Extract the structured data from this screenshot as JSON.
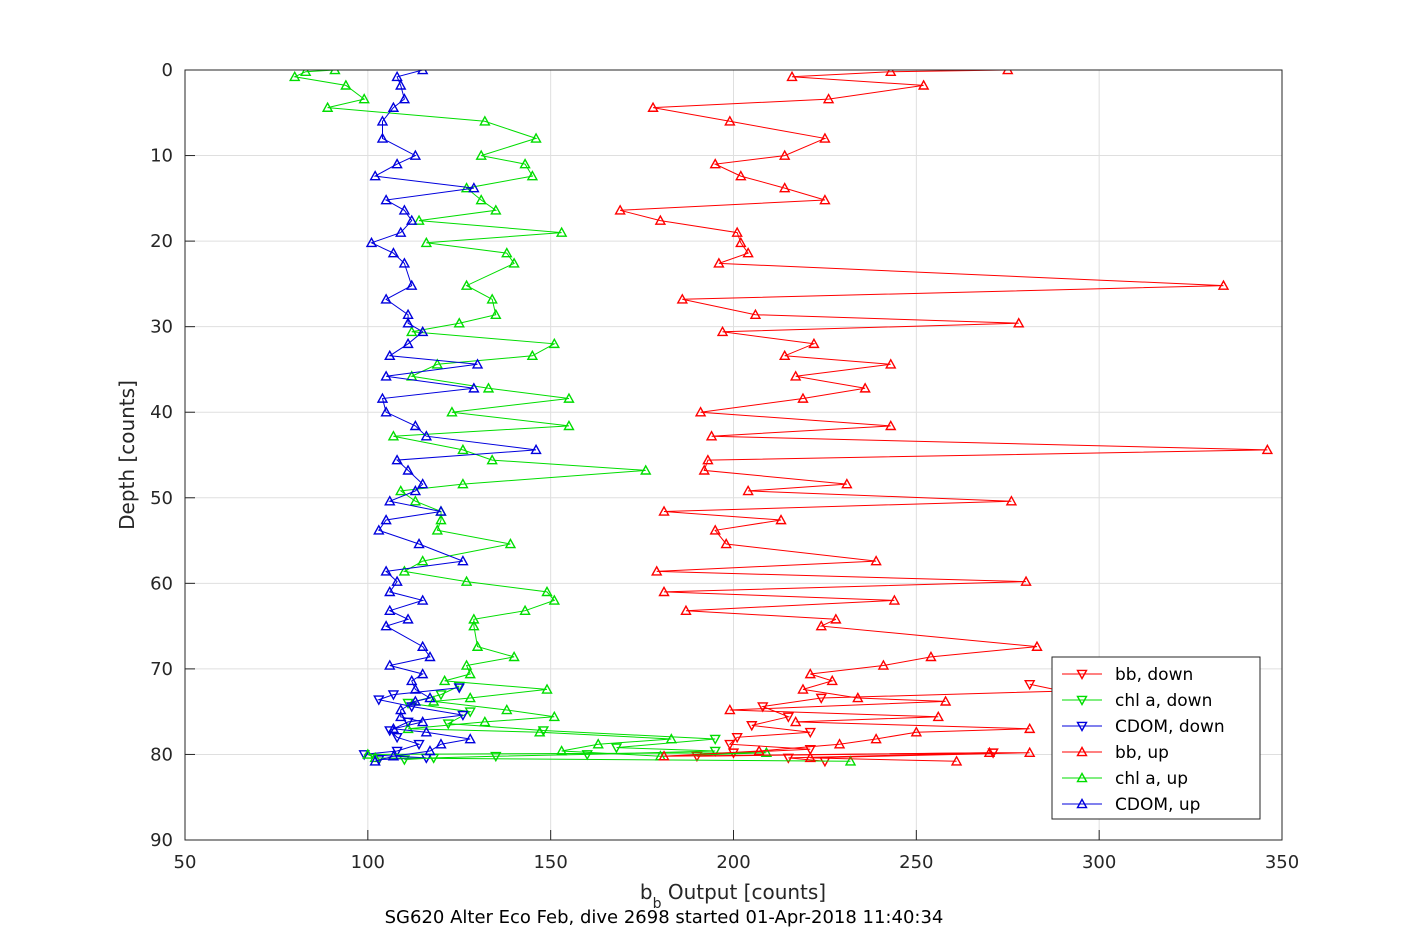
{
  "chart_data": {
    "type": "line",
    "title": "SG620 Alter Eco Feb, dive 2698 started 01-Apr-2018 11:40:34",
    "xlabel_main": "b",
    "xlabel_sub": "b",
    "xlabel_rest": " Output [counts]",
    "ylabel": "Depth [counts]",
    "xlim": [
      50,
      350
    ],
    "ylim": [
      0,
      90
    ],
    "y_reversed": true,
    "grid": true,
    "legend_position": "bottom-right",
    "xticks": [
      "50",
      "100",
      "150",
      "200",
      "250",
      "300",
      "350"
    ],
    "yticks": [
      "0",
      "10",
      "20",
      "30",
      "40",
      "50",
      "60",
      "70",
      "80",
      "90"
    ],
    "series": [
      {
        "name": "bb, down",
        "color": "#ff0000",
        "marker": "down",
        "points": [
          [
            281,
            71.8
          ],
          [
            290,
            72.6
          ],
          [
            224,
            73.4
          ],
          [
            208,
            74.4
          ],
          [
            215,
            75.6
          ],
          [
            205,
            76.6
          ],
          [
            221,
            77.4
          ],
          [
            201,
            78.0
          ],
          [
            199,
            78.8
          ],
          [
            221,
            79.4
          ],
          [
            200,
            79.8
          ],
          [
            190,
            80.2
          ],
          [
            271,
            79.8
          ],
          [
            215,
            80.4
          ],
          [
            225,
            80.8
          ]
        ]
      },
      {
        "name": "chl a, down",
        "color": "#00dd00",
        "marker": "down",
        "points": [
          [
            125,
            72.0
          ],
          [
            120,
            73.0
          ],
          [
            111,
            74.0
          ],
          [
            128,
            75.0
          ],
          [
            122,
            76.4
          ],
          [
            148,
            77.2
          ],
          [
            195,
            78.2
          ],
          [
            168,
            79.2
          ],
          [
            195,
            79.6
          ],
          [
            160,
            80.0
          ],
          [
            135,
            80.2
          ],
          [
            118,
            80.4
          ],
          [
            110,
            80.6
          ]
        ]
      },
      {
        "name": "CDOM, down",
        "color": "#0000dd",
        "marker": "down",
        "points": [
          [
            125,
            72.2
          ],
          [
            107,
            73.0
          ],
          [
            103,
            73.6
          ],
          [
            112,
            74.4
          ],
          [
            126,
            75.4
          ],
          [
            111,
            76.2
          ],
          [
            106,
            77.2
          ],
          [
            108,
            78.0
          ],
          [
            114,
            78.8
          ],
          [
            108,
            79.6
          ],
          [
            99,
            80.0
          ],
          [
            116,
            80.4
          ],
          [
            103,
            80.6
          ]
        ]
      },
      {
        "name": "bb, up",
        "color": "#ff0000",
        "marker": "up",
        "points": [
          [
            275,
            0
          ],
          [
            243,
            0.2
          ],
          [
            216,
            0.8
          ],
          [
            252,
            1.8
          ],
          [
            226,
            3.4
          ],
          [
            178,
            4.4
          ],
          [
            199,
            6
          ],
          [
            225,
            8
          ],
          [
            214,
            10
          ],
          [
            195,
            11
          ],
          [
            202,
            12.4
          ],
          [
            214,
            13.8
          ],
          [
            225,
            15.2
          ],
          [
            169,
            16.4
          ],
          [
            180,
            17.6
          ],
          [
            201,
            19
          ],
          [
            202,
            20.2
          ],
          [
            204,
            21.4
          ],
          [
            196,
            22.6
          ],
          [
            334,
            25.2
          ],
          [
            186,
            26.8
          ],
          [
            206,
            28.6
          ],
          [
            278,
            29.6
          ],
          [
            197,
            30.6
          ],
          [
            222,
            32
          ],
          [
            214,
            33.4
          ],
          [
            243,
            34.4
          ],
          [
            217,
            35.8
          ],
          [
            236,
            37.2
          ],
          [
            219,
            38.4
          ],
          [
            191,
            40
          ],
          [
            243,
            41.6
          ],
          [
            194,
            42.8
          ],
          [
            346,
            44.4
          ],
          [
            193,
            45.6
          ],
          [
            192,
            46.8
          ],
          [
            231,
            48.4
          ],
          [
            204,
            49.2
          ],
          [
            276,
            50.4
          ],
          [
            181,
            51.6
          ],
          [
            213,
            52.6
          ],
          [
            195,
            53.8
          ],
          [
            198,
            55.4
          ],
          [
            239,
            57.4
          ],
          [
            179,
            58.6
          ],
          [
            280,
            59.8
          ],
          [
            181,
            61
          ],
          [
            244,
            62
          ],
          [
            187,
            63.2
          ],
          [
            228,
            64.2
          ],
          [
            224,
            65
          ],
          [
            283,
            67.4
          ],
          [
            254,
            68.6
          ],
          [
            241,
            69.6
          ],
          [
            221,
            70.6
          ],
          [
            227,
            71.4
          ],
          [
            219,
            72.4
          ],
          [
            234,
            73.4
          ],
          [
            258,
            73.8
          ],
          [
            199,
            74.8
          ],
          [
            256,
            75.6
          ],
          [
            217,
            76.2
          ],
          [
            281,
            77
          ],
          [
            250,
            77.4
          ],
          [
            239,
            78.2
          ],
          [
            229,
            78.8
          ],
          [
            207,
            79.6
          ],
          [
            181,
            80.2
          ],
          [
            270,
            79.8
          ],
          [
            281,
            79.8
          ],
          [
            221,
            80.4
          ],
          [
            261,
            80.8
          ]
        ]
      },
      {
        "name": "chl a, up",
        "color": "#00dd00",
        "marker": "up",
        "points": [
          [
            91,
            0
          ],
          [
            83,
            0.2
          ],
          [
            80,
            0.8
          ],
          [
            94,
            1.8
          ],
          [
            99,
            3.4
          ],
          [
            89,
            4.4
          ],
          [
            132,
            6
          ],
          [
            146,
            8
          ],
          [
            131,
            10
          ],
          [
            143,
            11
          ],
          [
            145,
            12.4
          ],
          [
            127,
            13.8
          ],
          [
            131,
            15.2
          ],
          [
            135,
            16.4
          ],
          [
            114,
            17.6
          ],
          [
            153,
            19
          ],
          [
            116,
            20.2
          ],
          [
            138,
            21.4
          ],
          [
            140,
            22.6
          ],
          [
            127,
            25.2
          ],
          [
            134,
            26.8
          ],
          [
            135,
            28.6
          ],
          [
            125,
            29.6
          ],
          [
            112,
            30.6
          ],
          [
            151,
            32
          ],
          [
            145,
            33.4
          ],
          [
            119,
            34.4
          ],
          [
            112,
            35.8
          ],
          [
            133,
            37.2
          ],
          [
            155,
            38.4
          ],
          [
            123,
            40
          ],
          [
            155,
            41.6
          ],
          [
            107,
            42.8
          ],
          [
            126,
            44.4
          ],
          [
            134,
            45.6
          ],
          [
            176,
            46.8
          ],
          [
            126,
            48.4
          ],
          [
            109,
            49.2
          ],
          [
            113,
            50.4
          ],
          [
            120,
            51.6
          ],
          [
            120,
            52.6
          ],
          [
            119,
            53.8
          ],
          [
            139,
            55.4
          ],
          [
            115,
            57.4
          ],
          [
            110,
            58.6
          ],
          [
            127,
            59.8
          ],
          [
            149,
            61
          ],
          [
            151,
            62
          ],
          [
            143,
            63.2
          ],
          [
            129,
            64.2
          ],
          [
            129,
            65
          ],
          [
            130,
            67.4
          ],
          [
            140,
            68.6
          ],
          [
            127,
            69.6
          ],
          [
            128,
            70.6
          ],
          [
            121,
            71.4
          ],
          [
            149,
            72.4
          ],
          [
            128,
            73.4
          ],
          [
            118,
            73.8
          ],
          [
            138,
            74.8
          ],
          [
            151,
            75.6
          ],
          [
            132,
            76.2
          ],
          [
            111,
            77
          ],
          [
            147,
            77.4
          ],
          [
            183,
            78.2
          ],
          [
            163,
            78.8
          ],
          [
            153,
            79.6
          ],
          [
            180,
            80.2
          ],
          [
            209,
            79.8
          ],
          [
            100,
            80
          ],
          [
            102,
            80.4
          ],
          [
            232,
            80.8
          ]
        ]
      },
      {
        "name": "CDOM, up",
        "color": "#0000dd",
        "marker": "up",
        "points": [
          [
            115,
            0
          ],
          [
            108,
            0.8
          ],
          [
            109,
            1.8
          ],
          [
            110,
            3.4
          ],
          [
            107,
            4.4
          ],
          [
            104,
            6
          ],
          [
            104,
            8
          ],
          [
            113,
            10
          ],
          [
            108,
            11
          ],
          [
            102,
            12.4
          ],
          [
            129,
            13.8
          ],
          [
            105,
            15.2
          ],
          [
            110,
            16.4
          ],
          [
            112,
            17.6
          ],
          [
            109,
            19
          ],
          [
            101,
            20.2
          ],
          [
            107,
            21.4
          ],
          [
            110,
            22.6
          ],
          [
            112,
            25.2
          ],
          [
            105,
            26.8
          ],
          [
            111,
            28.6
          ],
          [
            111,
            29.6
          ],
          [
            115,
            30.6
          ],
          [
            111,
            32
          ],
          [
            106,
            33.4
          ],
          [
            130,
            34.4
          ],
          [
            105,
            35.8
          ],
          [
            129,
            37.2
          ],
          [
            104,
            38.4
          ],
          [
            105,
            40
          ],
          [
            113,
            41.6
          ],
          [
            116,
            42.8
          ],
          [
            146,
            44.4
          ],
          [
            108,
            45.6
          ],
          [
            111,
            46.8
          ],
          [
            115,
            48.4
          ],
          [
            113,
            49.2
          ],
          [
            106,
            50.4
          ],
          [
            120,
            51.6
          ],
          [
            105,
            52.6
          ],
          [
            103,
            53.8
          ],
          [
            114,
            55.4
          ],
          [
            126,
            57.4
          ],
          [
            105,
            58.6
          ],
          [
            108,
            59.8
          ],
          [
            106,
            61
          ],
          [
            115,
            62
          ],
          [
            106,
            63.2
          ],
          [
            111,
            64.2
          ],
          [
            105,
            65
          ],
          [
            115,
            67.4
          ],
          [
            117,
            68.6
          ],
          [
            106,
            69.6
          ],
          [
            115,
            70.6
          ],
          [
            112,
            71.4
          ],
          [
            113,
            72.4
          ],
          [
            117,
            73.4
          ],
          [
            113,
            73.8
          ],
          [
            109,
            74.8
          ],
          [
            109,
            75.6
          ],
          [
            115,
            76.2
          ],
          [
            107,
            77
          ],
          [
            116,
            77.4
          ],
          [
            128,
            78.2
          ],
          [
            120,
            78.8
          ],
          [
            117,
            79.6
          ],
          [
            107,
            80.2
          ],
          [
            102,
            80.8
          ]
        ]
      }
    ]
  }
}
